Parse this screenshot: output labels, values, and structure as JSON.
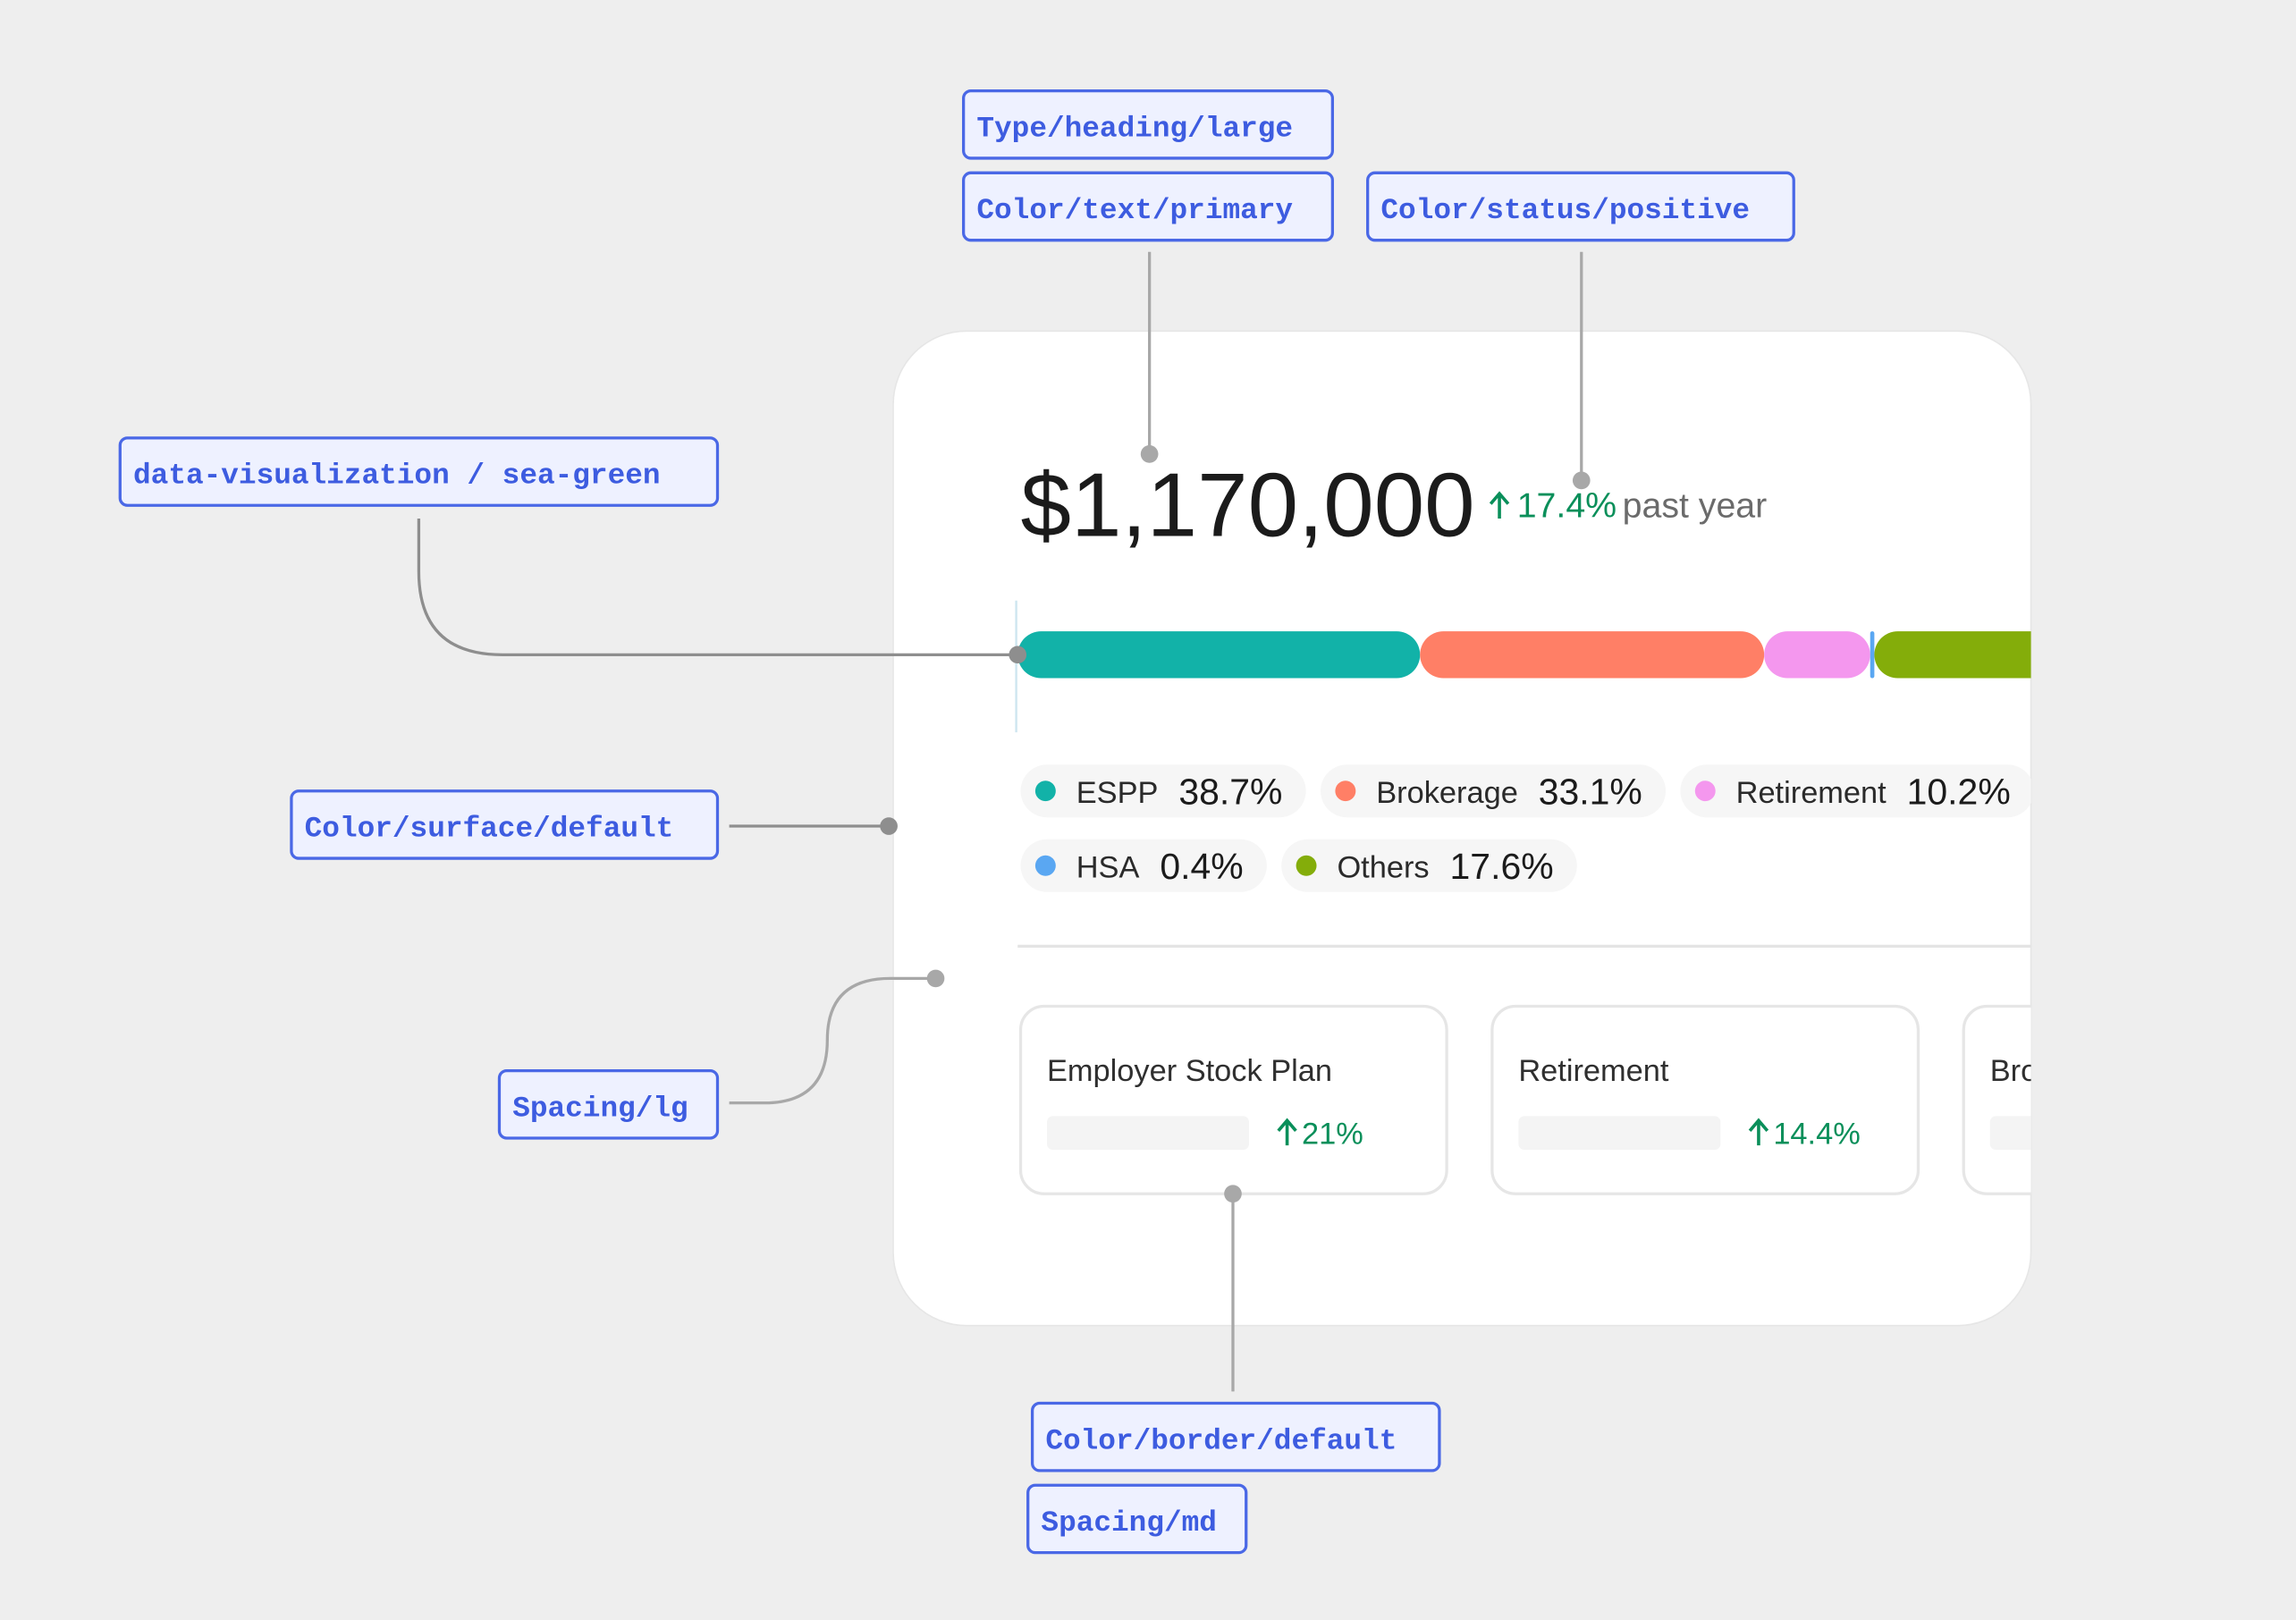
{
  "annotations": [
    {
      "label": "Type/heading/large"
    },
    {
      "label": "Color/text/primary"
    },
    {
      "label": "Color/status/positive"
    },
    {
      "label": "data-visualization / sea-green"
    },
    {
      "label": "Color/surface/default"
    },
    {
      "label": "Spacing/lg"
    },
    {
      "label": "Color/border/default"
    },
    {
      "label": "Spacing/md"
    }
  ],
  "card": {
    "total": "$1,170,000",
    "change": "17.4%",
    "change_label": "past year",
    "allocation": [
      {
        "name": "ESPP",
        "value": 38.7,
        "value_label": "38.7%",
        "color": "#12b2a8"
      },
      {
        "name": "Brokerage",
        "value": 33.1,
        "value_label": "33.1%",
        "color": "#ff7f66"
      },
      {
        "name": "Retirement",
        "value": 10.2,
        "value_label": "10.2%",
        "color": "#f497ee"
      },
      {
        "name": "HSA",
        "value": 0.4,
        "value_label": "0.4%",
        "color": "#5aa7f2"
      },
      {
        "name": "Others",
        "value": 17.6,
        "value_label": "17.6%",
        "color": "#84ad0a"
      }
    ],
    "accounts": [
      {
        "title": "Employer Stock Plan",
        "change": "21%"
      },
      {
        "title": "Retirement",
        "change": "14.4%"
      },
      {
        "title": "Brokerage",
        "change": ""
      }
    ]
  }
}
